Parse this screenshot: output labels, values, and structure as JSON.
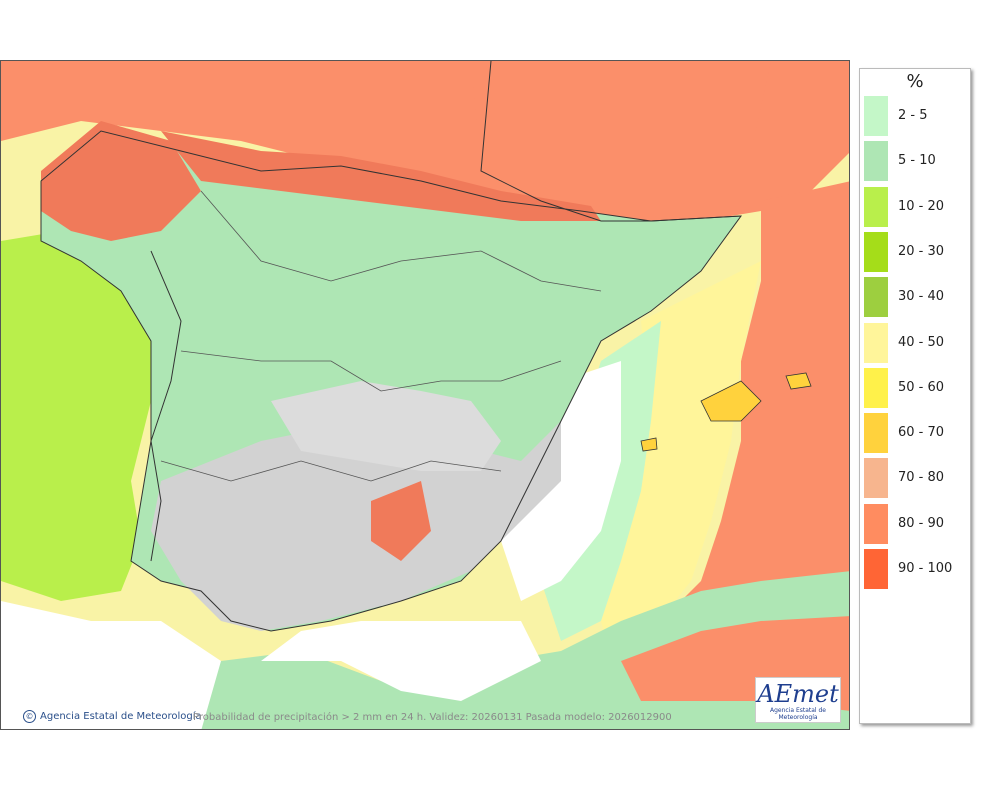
{
  "legend": {
    "unit": "%",
    "classes": [
      {
        "label": "2 - 5",
        "color": "#c4f7c8"
      },
      {
        "label": "5 - 10",
        "color": "#aee6b4"
      },
      {
        "label": "10 - 20",
        "color": "#b9ef4b"
      },
      {
        "label": "20 - 30",
        "color": "#a5dd19"
      },
      {
        "label": "30 - 40",
        "color": "#9dcf3f"
      },
      {
        "label": "40 - 50",
        "color": "#fff59a"
      },
      {
        "label": "50 - 60",
        "color": "#fff14a"
      },
      {
        "label": "60 - 70",
        "color": "#ffd23d"
      },
      {
        "label": "70 - 80",
        "color": "#f7b58e"
      },
      {
        "label": "80 - 90",
        "color": "#ff8c60"
      },
      {
        "label": "90 - 100",
        "color": "#ff6535"
      }
    ]
  },
  "map": {
    "copyright": "Agencia Estatal de Meteorología",
    "caption": "Probabilidad de precipitación > 2 mm en 24 h. Validez: 20260131 Pasada modelo: 2026012900",
    "logo_text": "AEmet",
    "logo_subtitle": "Agencia Estatal de Meteorología"
  }
}
